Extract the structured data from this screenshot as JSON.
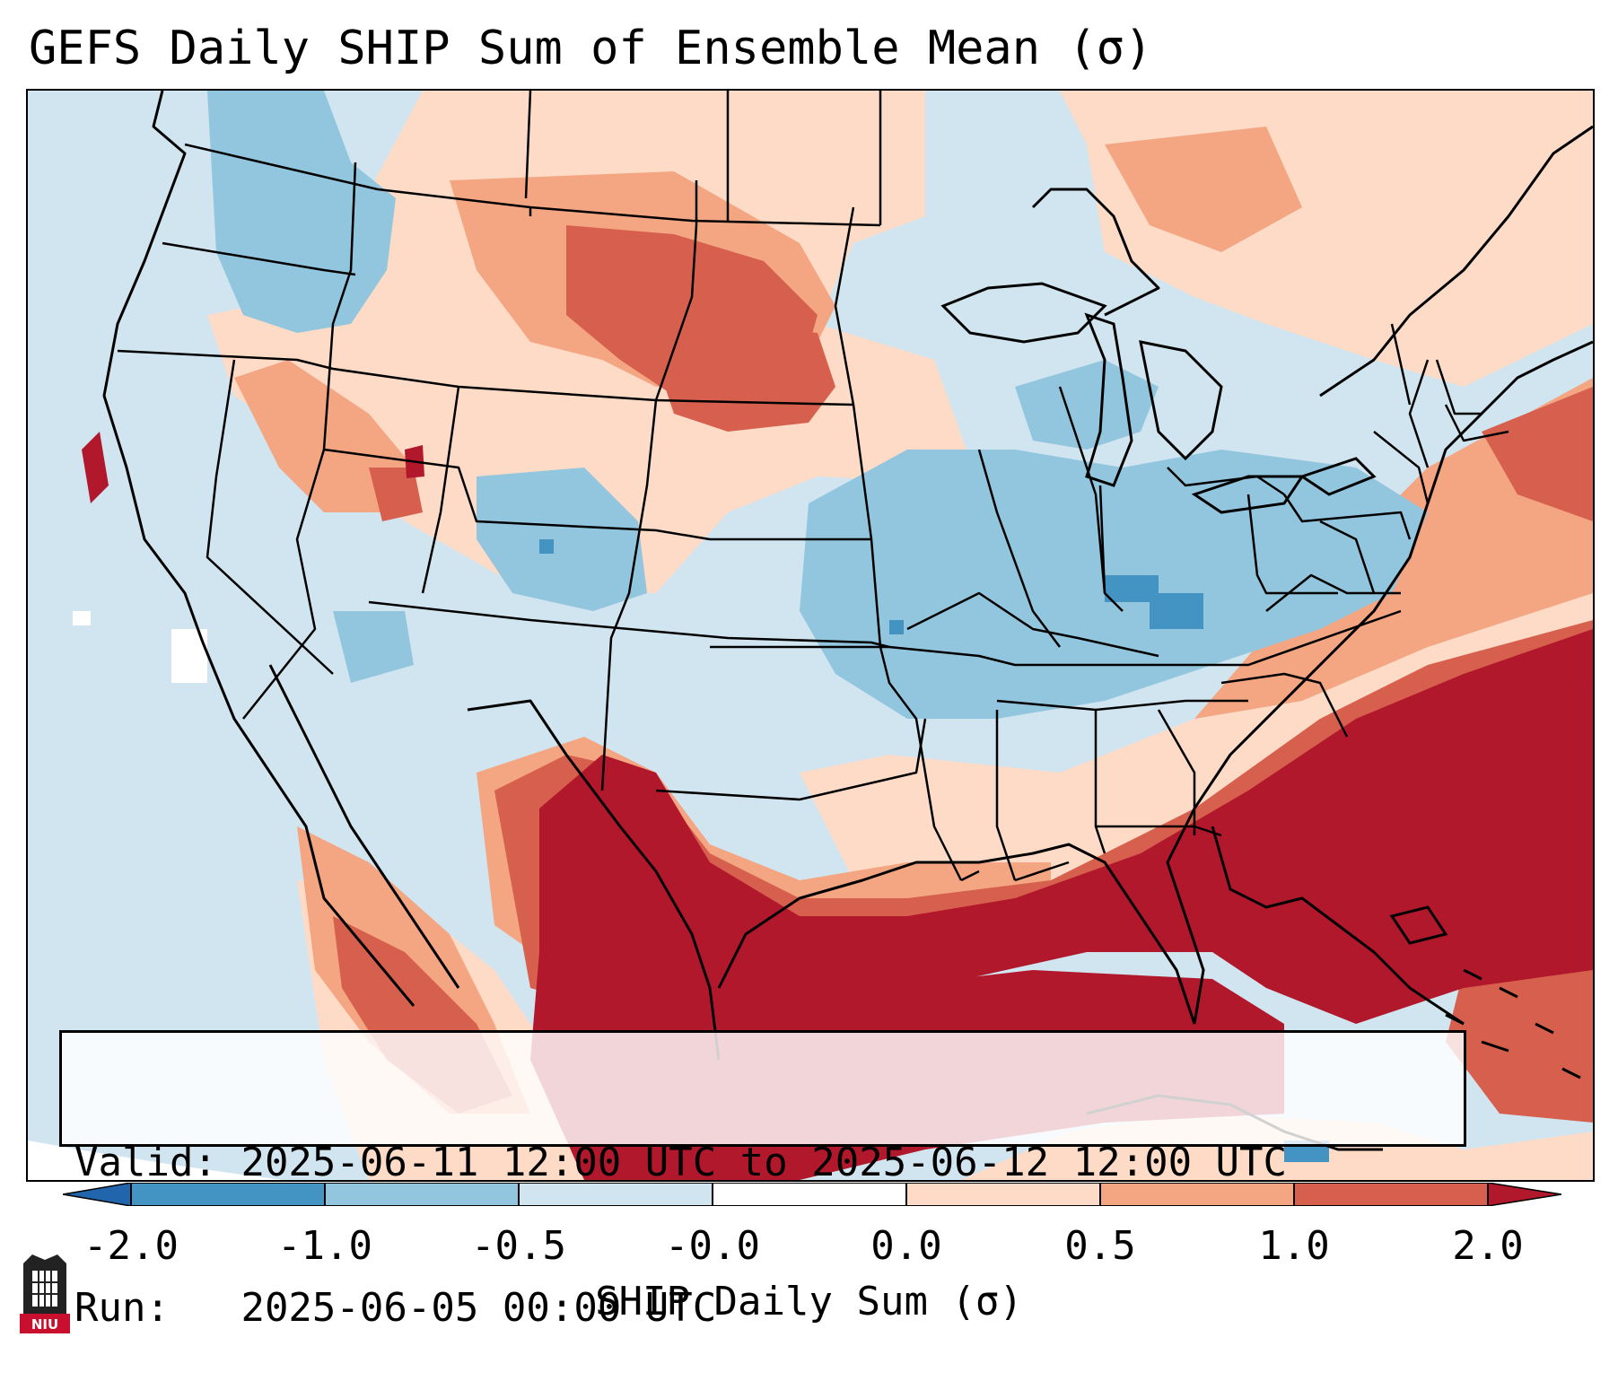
{
  "title": "GEFS Daily SHIP Sum of Ensemble Mean (σ)",
  "valid_label": "Valid:",
  "valid_value": "2025-06-11 12:00 UTC to 2025-06-12 12:00 UTC",
  "run_label": "Run:",
  "run_value": "2025-06-05 00:00 UTC",
  "colorbar": {
    "label": "SHIP Daily Sum (σ)",
    "ticks": [
      "-2.0",
      "-1.0",
      "-0.5",
      "-0.0",
      "0.0",
      "0.5",
      "1.0",
      "2.0"
    ],
    "bins": [
      {
        "from": "-2.0",
        "to": "-1.0",
        "color": "#4393c3"
      },
      {
        "from": "-1.0",
        "to": "-0.5",
        "color": "#92c5de"
      },
      {
        "from": "-0.5",
        "to": "-0.0",
        "color": "#d1e5f0"
      },
      {
        "from": "-0.0",
        "to": "0.0",
        "color": "#ffffff"
      },
      {
        "from": "0.0",
        "to": "0.5",
        "color": "#fddbc7"
      },
      {
        "from": "0.5",
        "to": "1.0",
        "color": "#f4a582"
      },
      {
        "from": "1.0",
        "to": "2.0",
        "color": "#d6604d"
      }
    ],
    "under_color": "#2166ac",
    "over_color": "#b2182b"
  },
  "logo": {
    "text": "NIU",
    "color": "#c8102e"
  },
  "map": {
    "region": "Contiguous United States",
    "field": "SHIP Daily Sum anomaly (σ)",
    "anomaly_areas": [
      {
        "area": "Texas, Gulf of Mexico, Southeast and western Atlantic",
        "category": "above 2.0",
        "color": "#b2182b"
      },
      {
        "area": "Northern Plains (North & South Dakota)",
        "category": "1.0 to 2.0",
        "color": "#d6604d"
      },
      {
        "area": "Midwest and Ohio Valley",
        "category": "-1.0 to -0.5",
        "color": "#92c5de"
      },
      {
        "area": "Colorado and Utah",
        "category": "-1.0 to -0.5",
        "color": "#92c5de"
      },
      {
        "area": "Pacific Northwest",
        "category": "-1.0 to -0.5",
        "color": "#92c5de"
      },
      {
        "area": "Great Basin and northern Rockies",
        "category": "0.0 to 1.0",
        "color": "#f4a582"
      }
    ]
  }
}
